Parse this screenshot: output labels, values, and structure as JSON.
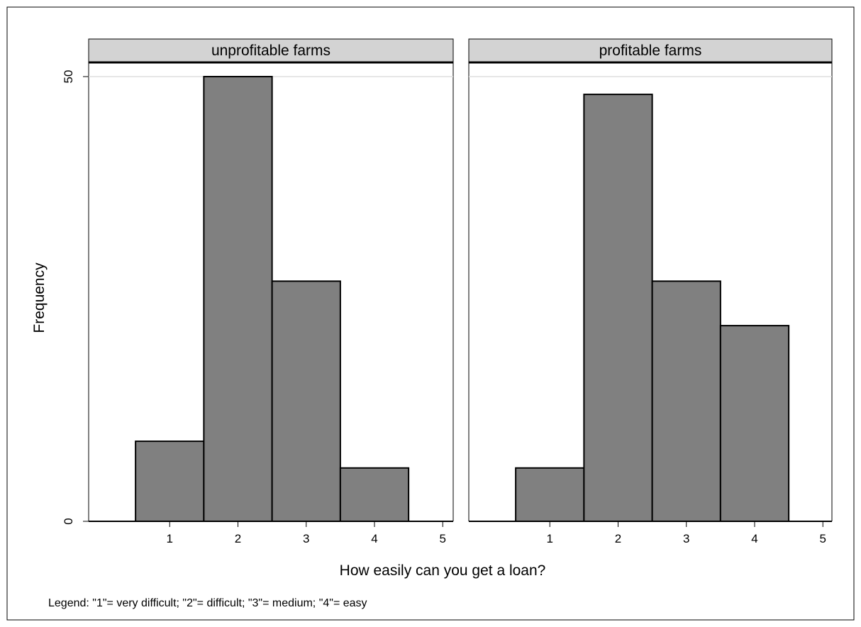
{
  "chart_data": {
    "type": "bar",
    "subtype": "histogram",
    "ylabel": "Frequency",
    "xlabel": "How easily can you get a loan?",
    "note": "Legend: \"1\"= very difficult; \"2\"= difficult; \"3\"= medium; \"4\"= easy",
    "xlim": [
      0,
      5
    ],
    "ylim": [
      0,
      50
    ],
    "xticks": [
      "1",
      "2",
      "3",
      "4",
      "5"
    ],
    "yticks": [
      "0",
      "50"
    ],
    "bar_color": "#808080",
    "header_color": "#d3d3d3",
    "panels": [
      {
        "title": "unprofitable farms",
        "categories": [
          1,
          2,
          3,
          4
        ],
        "values": [
          9,
          50,
          27,
          6
        ]
      },
      {
        "title": "profitable farms",
        "categories": [
          1,
          2,
          3,
          4
        ],
        "values": [
          6,
          48,
          27,
          22
        ]
      }
    ]
  }
}
